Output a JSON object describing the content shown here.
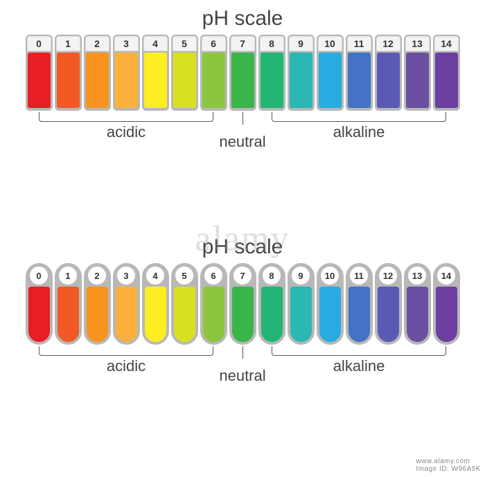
{
  "title": "pH scale",
  "values": [
    0,
    1,
    2,
    3,
    4,
    5,
    6,
    7,
    8,
    9,
    10,
    11,
    12,
    13,
    14
  ],
  "colors": [
    "#e81e25",
    "#f15a24",
    "#f7931e",
    "#fbb03b",
    "#fcee21",
    "#d9e021",
    "#8cc63f",
    "#39b54a",
    "#22b573",
    "#2bb7b3",
    "#29abe2",
    "#4472c4",
    "#5a5ab5",
    "#6a4fa3",
    "#6b3fa0"
  ],
  "cell_border_color": "#b8b8b8",
  "background_color": "#ffffff",
  "title_fontsize": 30,
  "label_fontsize": 22,
  "number_fontsize": 14,
  "regions": {
    "acidic": {
      "label": "acidic",
      "from": 0,
      "to": 6
    },
    "neutral": {
      "label": "neutral",
      "at": 7
    },
    "alkaline": {
      "label": "alkaline",
      "from": 8,
      "to": 14
    }
  },
  "variant_a": {
    "shape": "rounded-rect",
    "swatch_w": 33,
    "swatch_h": 80,
    "corner_radius": 6
  },
  "variant_b": {
    "shape": "pill",
    "swatch_w": 31,
    "swatch_h": 84,
    "pill_radius": 20,
    "number_circle_d": 26
  },
  "watermark": {
    "center": "alamy",
    "corner_prefix": "Image ID: ",
    "corner_id": "W96A5K",
    "corner_site": "www.alamy.com"
  }
}
